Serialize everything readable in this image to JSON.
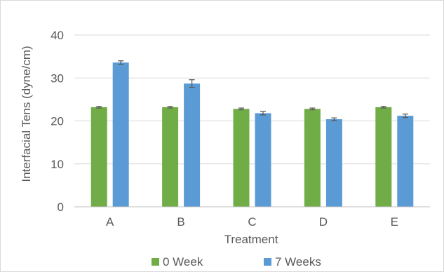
{
  "chart_data": {
    "type": "bar",
    "title": "",
    "xlabel": "Treatment",
    "ylabel": "Interfacial Tens (dyne/cm)",
    "categories": [
      "A",
      "B",
      "C",
      "D",
      "E"
    ],
    "ylim": [
      0,
      40
    ],
    "yticks": [
      0,
      10,
      20,
      30,
      40
    ],
    "grid": true,
    "legend_position": "bottom",
    "series": [
      {
        "name": "0 Week",
        "color": "#70ad47",
        "values": [
          23.2,
          23.2,
          22.8,
          22.8,
          23.2
        ],
        "errors": [
          0.2,
          0.2,
          0.2,
          0.2,
          0.2
        ]
      },
      {
        "name": "7 Weeks",
        "color": "#5b9bd5",
        "values": [
          33.6,
          28.7,
          21.8,
          20.4,
          21.2
        ],
        "errors": [
          0.4,
          0.9,
          0.4,
          0.3,
          0.4
        ]
      }
    ]
  }
}
